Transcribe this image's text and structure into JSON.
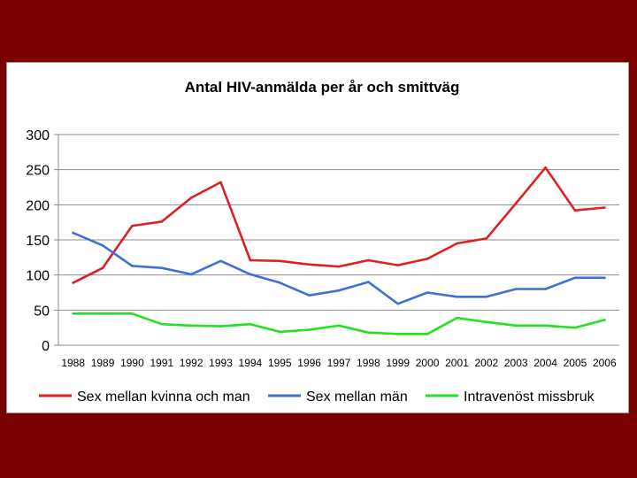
{
  "chart_data": {
    "type": "line",
    "title": "Antal HIV-anmälda per år och smittväg",
    "xlabel": "",
    "ylabel": "",
    "ylim": [
      0,
      300
    ],
    "yticks": [
      "0",
      "50",
      "100",
      "150",
      "200",
      "250",
      "300"
    ],
    "categories": [
      "1988",
      "1989",
      "1990",
      "1991",
      "1992",
      "1993",
      "1994",
      "1995",
      "1996",
      "1997",
      "1998",
      "1999",
      "2000",
      "2001",
      "2002",
      "2003",
      "2004",
      "2005",
      "2006"
    ],
    "legend_position": "bottom",
    "series": [
      {
        "name": "Sex mellan kvinna och man",
        "color": "#e01f1f",
        "values": [
          89,
          110,
          170,
          176,
          210,
          232,
          121,
          120,
          115,
          112,
          121,
          114,
          123,
          145,
          152,
          202,
          253,
          192,
          196
        ]
      },
      {
        "name": "Sex mellan män",
        "color": "#3f6fd8",
        "values": [
          160,
          142,
          113,
          110,
          101,
          120,
          101,
          89,
          71,
          78,
          90,
          59,
          75,
          69,
          69,
          80,
          80,
          96,
          96
        ]
      },
      {
        "name": "Intravenöst missbruk",
        "color": "#22e022",
        "values": [
          45,
          45,
          45,
          30,
          28,
          27,
          30,
          19,
          22,
          28,
          18,
          16,
          16,
          39,
          33,
          28,
          28,
          25,
          36
        ]
      }
    ]
  }
}
